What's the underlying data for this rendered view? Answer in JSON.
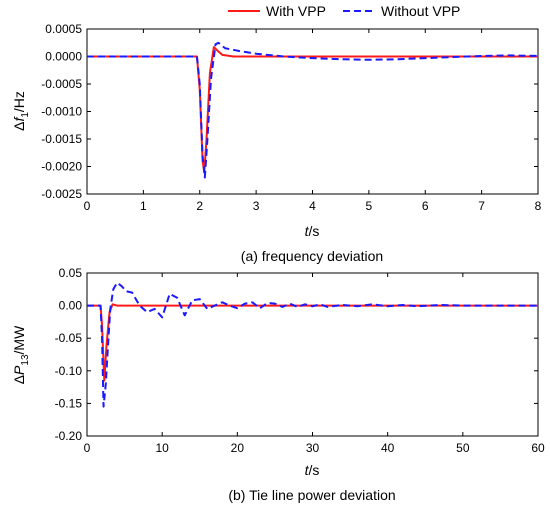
{
  "legend": {
    "items": [
      {
        "label": "With VPP",
        "color": "#ff1a1a",
        "dash": "solid"
      },
      {
        "label": "Without VPP",
        "color": "#1a1aff",
        "dash": "dashed"
      }
    ]
  },
  "chart_data": [
    {
      "type": "line",
      "caption": "(a) frequency deviation",
      "ylabel": {
        "prefix": "Δ",
        "var": "f",
        "sub": "1",
        "unit": "/Hz"
      },
      "xlabel": {
        "var": "t",
        "unit": "/s"
      },
      "xlim": [
        0,
        8
      ],
      "ylim": [
        -0.0025,
        0.0005
      ],
      "xticks": [
        "0",
        "1",
        "2",
        "3",
        "4",
        "5",
        "6",
        "7",
        "8"
      ],
      "yticks": [
        "-0.0025",
        "-0.0020",
        "-0.0015",
        "-0.0010",
        "-0.0005",
        "0.0000",
        "0.0005"
      ],
      "series": [
        {
          "name": "With VPP",
          "x": [
            0,
            1.95,
            2.0,
            2.05,
            2.08,
            2.12,
            2.18,
            2.25,
            2.3,
            2.4,
            2.6,
            3.0,
            8.0
          ],
          "y": [
            0,
            0,
            -0.0006,
            -0.0019,
            -0.0021,
            -0.0015,
            -0.0003,
            0.00017,
            0.00012,
            3e-05,
            0.0,
            0.0,
            0.0
          ]
        },
        {
          "name": "Without VPP",
          "x": [
            0,
            1.95,
            2.0,
            2.05,
            2.09,
            2.13,
            2.2,
            2.28,
            2.33,
            2.45,
            2.7,
            3.0,
            3.5,
            4.0,
            4.5,
            5.0,
            5.5,
            6.0,
            6.5,
            7.0,
            7.5,
            8.0
          ],
          "y": [
            0,
            0,
            -0.0005,
            -0.0018,
            -0.0022,
            -0.0016,
            -0.0004,
            0.00022,
            0.00025,
            0.00015,
            0.0001,
            5e-05,
            0.0,
            -3e-05,
            -5e-05,
            -6e-05,
            -5e-05,
            -3e-05,
            -1e-05,
            1e-05,
            2e-05,
            1e-05
          ]
        }
      ]
    },
    {
      "type": "line",
      "caption": "(b) Tie line power deviation",
      "ylabel": {
        "prefix": "Δ",
        "var": "P",
        "sub": "13",
        "unit": "/MW"
      },
      "xlabel": {
        "var": "t",
        "unit": "/s"
      },
      "xlim": [
        0,
        60
      ],
      "ylim": [
        -0.2,
        0.05
      ],
      "xticks": [
        "0",
        "10",
        "20",
        "30",
        "40",
        "50",
        "60"
      ],
      "yticks": [
        "-0.20",
        "-0.15",
        "-0.10",
        "-0.05",
        "0.00",
        "0.05"
      ],
      "series": [
        {
          "name": "With VPP",
          "x": [
            0,
            1.8,
            2.0,
            2.3,
            2.6,
            3.0,
            3.4,
            4.0,
            5.0,
            60
          ],
          "y": [
            0,
            0,
            -0.03,
            -0.115,
            -0.06,
            -0.01,
            0.002,
            0.0,
            0.0,
            0.0
          ]
        },
        {
          "name": "Without VPP",
          "x": [
            0,
            1.8,
            2.0,
            2.2,
            2.5,
            2.8,
            3.1,
            3.5,
            4.0,
            4.6,
            5.2,
            6.0,
            7.0,
            8.0,
            9.0,
            10.0,
            11.0,
            12.0,
            13.0,
            14.0,
            15.0,
            16.0,
            17.0,
            18.0,
            19.0,
            20.0,
            21.0,
            22.0,
            23.0,
            24.0,
            25.0,
            26.0,
            27.0,
            28.0,
            29.0,
            30.0,
            31.0,
            32.0,
            34.0,
            36.0,
            38.0,
            40.0,
            42.0,
            44.0,
            47.0,
            50.0,
            55.0,
            60.0
          ],
          "y": [
            0,
            0,
            -0.05,
            -0.155,
            -0.12,
            -0.06,
            -0.005,
            0.025,
            0.035,
            0.03,
            0.022,
            0.02,
            0.0,
            -0.01,
            -0.005,
            -0.018,
            0.018,
            0.012,
            -0.015,
            0.008,
            0.01,
            -0.005,
            0.0,
            0.005,
            0.0,
            -0.004,
            0.003,
            0.005,
            -0.004,
            0.004,
            0.003,
            -0.002,
            0.003,
            -0.002,
            0.002,
            -0.001,
            0.002,
            -0.002,
            0.001,
            -0.001,
            0.002,
            -0.001,
            0.001,
            -0.001,
            0.001,
            0.0,
            0.0,
            0.0
          ]
        }
      ]
    }
  ]
}
